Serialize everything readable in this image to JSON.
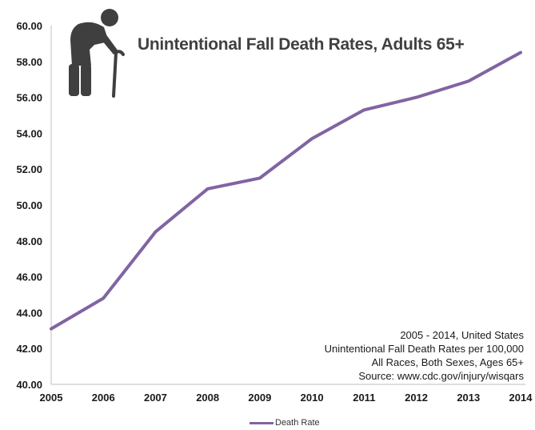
{
  "colors": {
    "line": "#8064a2",
    "axis": "#bfbfbf",
    "icon": "#3f3f3f"
  },
  "icon": {
    "name": "elderly-person-with-cane-icon"
  },
  "annotation": {
    "lines": [
      "2005 - 2014, United States",
      "Unintentional Fall Death Rates per 100,000",
      "All Races, Both Sexes, Ages 65+",
      "Source: www.cdc.gov/injury/wisqars"
    ]
  },
  "chart_data": {
    "type": "line",
    "title": "Unintentional Fall Death Rates, Adults 65+",
    "xlabel": "",
    "ylabel": "",
    "categories": [
      "2005",
      "2006",
      "2007",
      "2008",
      "2009",
      "2010",
      "2011",
      "2012",
      "2013",
      "2014"
    ],
    "series": [
      {
        "name": "Death Rate",
        "values": [
          43.1,
          44.8,
          48.5,
          50.9,
          51.5,
          53.7,
          55.3,
          56.0,
          56.9,
          58.5
        ]
      }
    ],
    "ylim": [
      40,
      60
    ],
    "yticks": [
      "40.00",
      "42.00",
      "44.00",
      "46.00",
      "48.00",
      "50.00",
      "52.00",
      "54.00",
      "56.00",
      "58.00",
      "60.00"
    ],
    "grid": false,
    "legend": "bottom"
  }
}
